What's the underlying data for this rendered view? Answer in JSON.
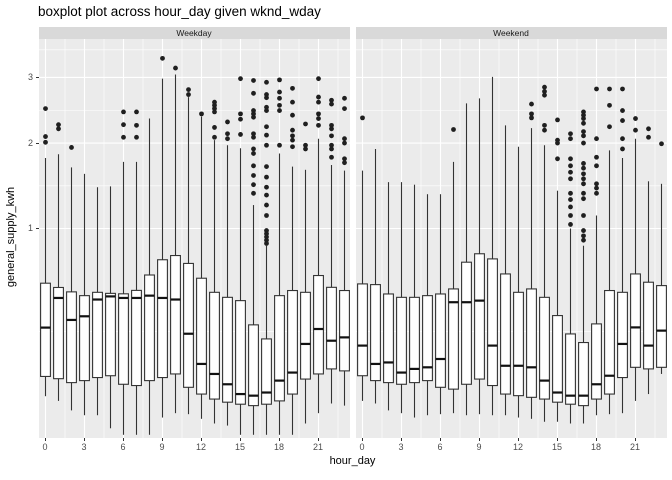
{
  "title": "boxplot plot across hour_day given wknd_wday",
  "axes": {
    "x_label": "hour_day",
    "y_label": "general_supply_kwh",
    "x_ticks": [
      0,
      3,
      6,
      9,
      12,
      15,
      18,
      21
    ],
    "y_ticks": [
      1,
      2,
      3
    ]
  },
  "colors": {
    "panel_bg": "#ebebeb",
    "strip_bg": "#d9d9d9",
    "grid": "#ffffff",
    "box_stroke": "#333333",
    "box_fill": "#ffffff",
    "median": "#111111",
    "outlier": "#1f1f1f",
    "tick_text": "#4d4d4d",
    "title_text": "#000000"
  },
  "chart_data": {
    "type": "boxplot",
    "title": "boxplot plot across hour_day given wknd_wday",
    "xlabel": "hour_day",
    "ylabel": "general_supply_kwh",
    "facet_variable": "wknd_wday",
    "y_scale": "sqrt",
    "ylim": [
      0,
      3.75
    ],
    "x_ticks": [
      0,
      3,
      6,
      9,
      12,
      15,
      18,
      21
    ],
    "y_ticks": [
      1,
      2,
      3
    ],
    "hours": [
      0,
      1,
      2,
      3,
      4,
      5,
      6,
      7,
      8,
      9,
      10,
      11,
      12,
      13,
      14,
      15,
      16,
      17,
      18,
      19,
      20,
      21,
      22,
      23
    ],
    "box_columns": [
      "whisker_low",
      "q1",
      "median",
      "q3",
      "whisker_high"
    ],
    "facets": [
      {
        "label": "Weekday",
        "stats": [
          [
            0.035,
            0.08,
            0.27,
            0.54,
            1.8
          ],
          [
            0.027,
            0.074,
            0.44,
            0.51,
            1.85
          ],
          [
            0.014,
            0.064,
            0.31,
            0.48,
            1.68
          ],
          [
            0.009,
            0.069,
            0.33,
            0.455,
            1.6
          ],
          [
            0.009,
            0.077,
            0.43,
            0.477,
            1.44
          ],
          [
            0.001,
            0.082,
            0.45,
            0.47,
            1.45
          ],
          [
            0.0,
            0.06,
            0.44,
            0.467,
            1.75
          ],
          [
            0.0,
            0.057,
            0.44,
            0.49,
            1.75
          ],
          [
            0.0,
            0.069,
            0.455,
            0.6,
            2.35
          ],
          [
            0.007,
            0.077,
            0.44,
            0.72,
            2.98
          ],
          [
            0.011,
            0.087,
            0.43,
            0.755,
            3.05
          ],
          [
            0.01,
            0.053,
            0.24,
            0.69,
            2.68
          ],
          [
            0.006,
            0.039,
            0.118,
            0.576,
            2.38
          ],
          [
            0.003,
            0.03,
            0.087,
            0.477,
            2.04
          ],
          [
            0.002,
            0.025,
            0.06,
            0.444,
            1.97
          ],
          [
            0.0,
            0.022,
            0.039,
            0.423,
            1.93
          ],
          [
            0.0,
            0.02,
            0.036,
            0.284,
            1.24
          ],
          [
            0.0,
            0.022,
            0.042,
            0.216,
            0.84
          ],
          [
            0.0,
            0.027,
            0.069,
            0.455,
            1.86
          ],
          [
            0.0,
            0.039,
            0.091,
            0.489,
            1.69
          ],
          [
            0.003,
            0.073,
            0.194,
            0.477,
            1.65
          ],
          [
            0.011,
            0.087,
            0.263,
            0.596,
            2.06
          ],
          [
            0.023,
            0.102,
            0.208,
            0.511,
            1.71
          ],
          [
            0.02,
            0.096,
            0.223,
            0.489,
            1.64
          ]
        ],
        "outliers": [
          [
            2.5,
            2.09,
            2.01
          ],
          [
            2.26,
            2.2
          ],
          [
            1.94
          ],
          [],
          [],
          [],
          [
            2.45,
            2.26,
            2.08
          ],
          [
            2.45,
            2.25,
            2.08
          ],
          [],
          [
            3.33
          ],
          [
            3.16
          ],
          [
            2.8,
            2.72
          ],
          [
            2.42
          ],
          [
            2.6,
            2.55,
            2.5,
            2.45,
            2.22,
            2.08
          ],
          [
            2.3,
            2.13,
            2.06
          ],
          [
            2.98,
            2.42,
            2.34,
            2.12
          ],
          [
            2.95,
            2.74,
            2.47,
            2.42,
            2.37,
            2.13,
            2.08,
            1.92,
            1.86,
            1.7,
            1.58,
            1.47,
            1.37
          ],
          [
            2.92,
            2.72,
            2.67,
            2.52,
            2.47,
            2.23,
            2.11,
            1.97,
            1.69,
            1.56,
            1.44,
            1.35,
            1.24,
            1.13,
            0.98,
            0.95,
            0.92,
            0.89,
            0.86
          ],
          [
            2.96,
            2.76,
            2.66,
            2.55,
            2.47,
            1.97
          ],
          [
            2.82,
            2.6,
            2.4,
            2.18,
            2.1,
            2.04,
            1.95
          ],
          [
            2.27,
            1.97,
            1.92
          ],
          [
            2.98,
            2.68,
            2.6,
            2.42,
            2.35,
            2.25
          ],
          [
            2.63,
            2.57,
            2.25,
            2.2,
            2.1,
            1.97,
            1.92,
            1.81
          ],
          [
            2.66,
            2.5,
            2.06,
            2.0,
            1.79,
            1.74
          ]
        ]
      },
      {
        "label": "Weekend",
        "stats": [
          [
            0.027,
            0.082,
            0.187,
            0.535,
            1.64
          ],
          [
            0.023,
            0.069,
            0.118,
            0.53,
            1.92
          ],
          [
            0.014,
            0.064,
            0.123,
            0.466,
            1.5
          ],
          [
            0.011,
            0.06,
            0.091,
            0.444,
            1.5
          ],
          [
            0.007,
            0.064,
            0.102,
            0.444,
            1.47
          ],
          [
            0.009,
            0.069,
            0.107,
            0.455,
            1.36
          ],
          [
            0.01,
            0.053,
            0.135,
            0.466,
            1.36
          ],
          [
            0.011,
            0.049,
            0.413,
            0.5,
            1.75
          ],
          [
            0.009,
            0.06,
            0.413,
            0.7,
            2.58
          ],
          [
            0.01,
            0.073,
            0.423,
            0.77,
            2.66
          ],
          [
            0.009,
            0.057,
            0.187,
            0.727,
            3.01
          ],
          [
            0.009,
            0.039,
            0.112,
            0.608,
            2.25
          ],
          [
            0.007,
            0.036,
            0.112,
            0.477,
            1.95
          ],
          [
            0.006,
            0.033,
            0.107,
            0.5,
            2.21
          ],
          [
            0.004,
            0.03,
            0.069,
            0.444,
            1.97
          ],
          [
            0.004,
            0.025,
            0.042,
            0.334,
            1.4
          ],
          [
            0.003,
            0.022,
            0.036,
            0.239,
            1.0
          ],
          [
            0.003,
            0.02,
            0.036,
            0.2,
            0.84
          ],
          [
            0.009,
            0.03,
            0.06,
            0.289,
            1.13
          ],
          [
            0.01,
            0.039,
            0.082,
            0.489,
            1.9
          ],
          [
            0.011,
            0.077,
            0.194,
            0.477,
            1.8
          ],
          [
            0.027,
            0.107,
            0.271,
            0.608,
            2.06
          ],
          [
            0.039,
            0.102,
            0.187,
            0.547,
            1.51
          ],
          [
            0.087,
            0.107,
            0.255,
            0.523,
            1.48
          ]
        ],
        "outliers": [
          [
            2.36
          ],
          [],
          [],
          [],
          [],
          [],
          [],
          [
            2.19
          ],
          [],
          [],
          [],
          [],
          [],
          [
            2.57,
            2.42,
            2.36
          ],
          [
            2.84,
            2.77,
            2.71,
            2.25,
            2.18
          ],
          [
            2.33,
            2.04,
            2.0,
            1.79
          ],
          [
            2.13,
            2.06,
            1.79,
            1.7,
            1.62,
            1.54,
            1.37,
            1.3,
            1.22,
            1.13,
            1.04
          ],
          [
            2.45,
            2.4,
            2.35,
            2.28,
            2.16,
            2.1,
            2.0,
            1.73,
            1.67,
            1.6,
            1.54,
            1.48,
            1.37,
            1.31,
            1.13,
            0.98,
            0.93,
            0.89
          ],
          [
            2.81,
            2.06,
            1.81,
            1.7,
            1.48,
            1.43,
            1.37
          ],
          [
            2.81,
            2.55,
            2.23
          ],
          [
            2.81,
            2.47,
            2.32,
            2.06,
            1.92
          ],
          [
            2.35,
            2.18
          ],
          [
            2.2,
            2.08
          ],
          [
            1.99
          ]
        ]
      }
    ]
  }
}
